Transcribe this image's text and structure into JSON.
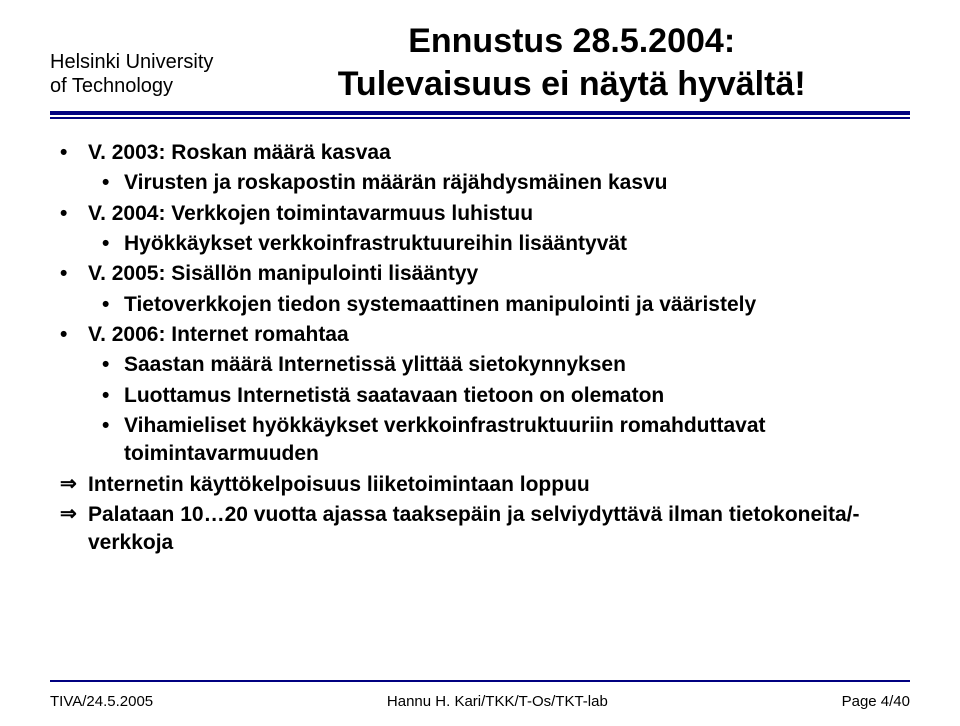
{
  "header": {
    "org_line1": "Helsinki University",
    "org_line2": "of Technology",
    "title_line1": "Ennustus 28.5.2004:",
    "title_line2": "Tulevaisuus ei näytä hyvältä!"
  },
  "bullets": {
    "y2003": "V. 2003: Roskan määrä kasvaa",
    "y2003_sub1": "Virusten ja roskapostin määrän räjähdysmäinen kasvu",
    "y2004": "V. 2004: Verkkojen toimintavarmuus luhistuu",
    "y2004_sub1": "Hyökkäykset verkkoinfrastruktuureihin lisääntyvät",
    "y2005": "V. 2005: Sisällön manipulointi lisääntyy",
    "y2005_sub1": "Tietoverkkojen tiedon systemaattinen manipulointi ja vääristely",
    "y2006": "V. 2006: Internet romahtaa",
    "y2006_sub1": "Saastan määrä Internetissä ylittää sietokynnyksen",
    "y2006_sub2": "Luottamus Internetistä saatavaan tietoon on olematon",
    "y2006_sub3": "Vihamieliset hyökkäykset verkkoinfrastruktuuriin romahduttavat toimintavarmuuden",
    "arrow1": "Internetin käyttökelpoisuus liiketoimintaan loppuu",
    "arrow2": "Palataan 10…20 vuotta ajassa taaksepäin ja selviydyttävä ilman tietokoneita/-verkkoja"
  },
  "footer": {
    "left": "TIVA/24.5.2005",
    "center": "Hannu H. Kari/TKK/T-Os/TKT-lab",
    "right": "Page 4/40"
  },
  "style": {
    "rule_color": "#000080",
    "text_color": "#000000",
    "bg_color": "#ffffff",
    "title_fontsize": 34,
    "body_fontsize": 21,
    "org_fontsize": 20,
    "footer_fontsize": 15
  }
}
